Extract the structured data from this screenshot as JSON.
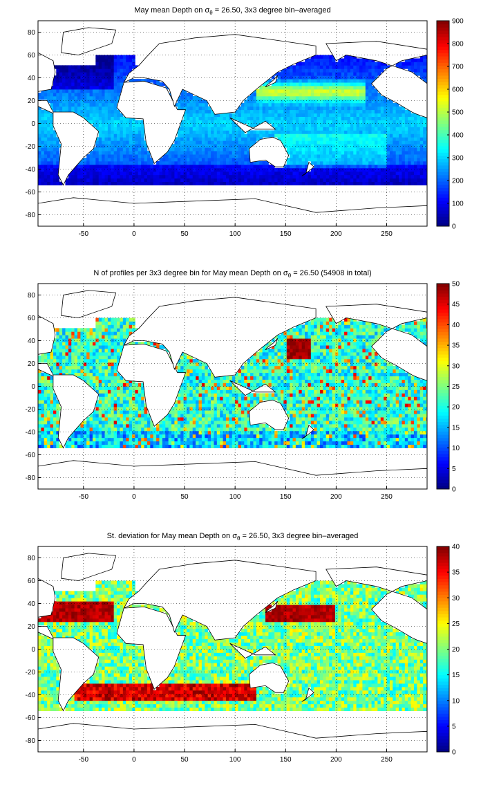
{
  "chart_data": [
    {
      "type": "heatmap",
      "title_parts": {
        "pre": "May mean Depth on σ",
        "sub": "θ",
        "post": " = 26.50, 3x3 degree bin–averaged"
      },
      "xlim": [
        -95,
        290
      ],
      "ylim": [
        -90,
        90
      ],
      "x_ticks": [
        -50,
        0,
        50,
        100,
        150,
        200,
        250
      ],
      "y_ticks": [
        -80,
        -60,
        -40,
        -20,
        0,
        20,
        40,
        60,
        80
      ],
      "colorbar": {
        "min": 0,
        "max": 900,
        "ticks": [
          0,
          100,
          200,
          300,
          400,
          500,
          600,
          700,
          800,
          900
        ]
      },
      "colormap": "jet",
      "grid": "dotted",
      "bin_size_deg": 3
    },
    {
      "type": "heatmap",
      "title_parts": {
        "pre": "N of profiles per 3x3 degree bin for May mean Depth on σ",
        "sub": "θ",
        "post": " = 26.50 (54908 in total)"
      },
      "xlim": [
        -95,
        290
      ],
      "ylim": [
        -90,
        90
      ],
      "x_ticks": [
        -50,
        0,
        50,
        100,
        150,
        200,
        250
      ],
      "y_ticks": [
        -80,
        -60,
        -40,
        -20,
        0,
        20,
        40,
        60,
        80
      ],
      "colorbar": {
        "min": 0,
        "max": 50,
        "ticks": [
          0,
          5,
          10,
          15,
          20,
          25,
          30,
          35,
          40,
          45,
          50
        ]
      },
      "colormap": "jet",
      "grid": "dotted",
      "bin_size_deg": 3,
      "total_profiles": 54908
    },
    {
      "type": "heatmap",
      "title_parts": {
        "pre": "St. deviation for May mean Depth on σ",
        "sub": "θ",
        "post": " = 26.50, 3x3 degree bin–averaged"
      },
      "xlim": [
        -95,
        290
      ],
      "ylim": [
        -90,
        90
      ],
      "x_ticks": [
        -50,
        0,
        50,
        100,
        150,
        200,
        250
      ],
      "y_ticks": [
        -80,
        -60,
        -40,
        -20,
        0,
        20,
        40,
        60,
        80
      ],
      "colorbar": {
        "min": 0,
        "max": 40,
        "ticks": [
          0,
          5,
          10,
          15,
          20,
          25,
          30,
          35,
          40
        ]
      },
      "colormap": "jet",
      "grid": "dotted",
      "bin_size_deg": 3
    }
  ]
}
